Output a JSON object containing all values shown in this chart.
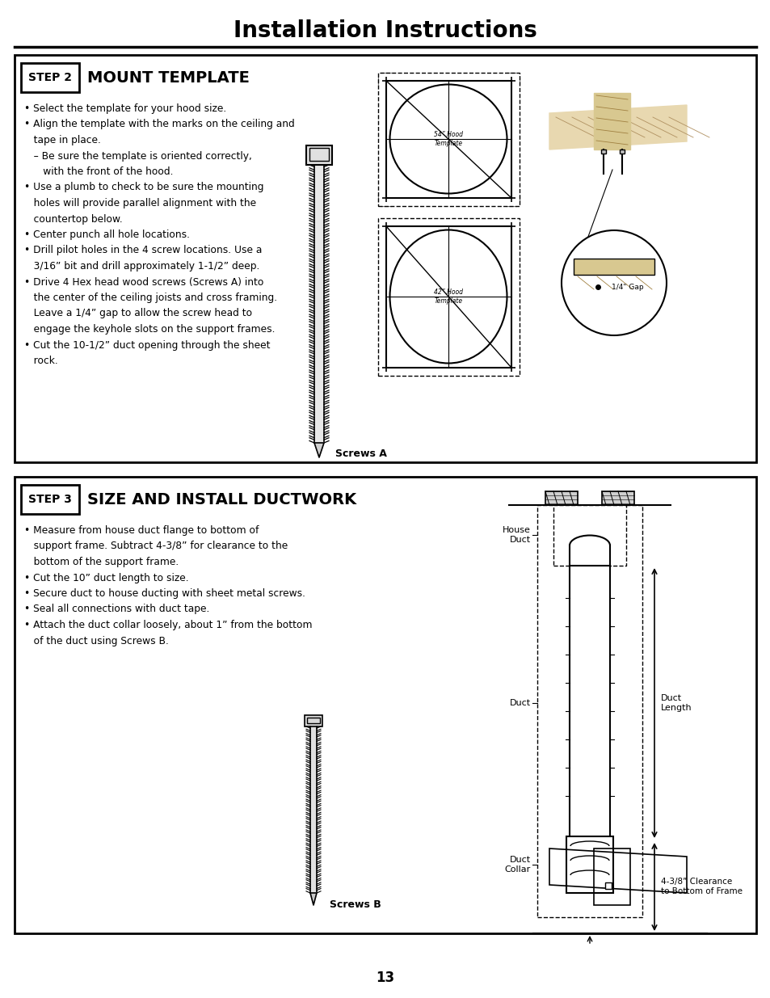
{
  "title": "Installation Instructions",
  "page_number": "13",
  "background_color": "#ffffff",
  "step2_box_label": "STEP 2",
  "step2_heading": "MOUNT TEMPLATE",
  "step2_bullets": [
    "• Select the template for your hood size.",
    "• Align the template with the marks on the ceiling and",
    "   tape in place.",
    "   – Be sure the template is oriented correctly,",
    "      with the front of the hood.",
    "• Use a plumb to check to be sure the mounting",
    "   holes will provide parallel alignment with the",
    "   countertop below.",
    "• Center punch all hole locations.",
    "• Drill pilot holes in the 4 screw locations. Use a",
    "   3/16” bit and drill approximately 1-1/2” deep.",
    "• Drive 4 Hex head wood screws (Screws A) into",
    "   the center of the ceiling joists and cross framing.",
    "   Leave a 1/4” gap to allow the screw head to",
    "   engage the keyhole slots on the support frames.",
    "• Cut the 10-1/2” duct opening through the sheet",
    "   rock."
  ],
  "screws_a_label": "Screws A",
  "step3_box_label": "STEP 3",
  "step3_heading": "SIZE AND INSTALL DUCTWORK",
  "step3_bullets": [
    "• Measure from house duct flange to bottom of",
    "   support frame. Subtract 4-3/8” for clearance to the",
    "   bottom of the support frame.",
    "• Cut the 10” duct length to size.",
    "• Secure duct to house ducting with sheet metal screws.",
    "• Seal all connections with duct tape.",
    "• Attach the duct collar loosely, about 1” from the bottom",
    "   of the duct using Screws B."
  ],
  "screws_b_label": "Screws B",
  "diagram_labels": {
    "house_duct": "House\nDuct",
    "duct": "Duct",
    "duct_collar": "Duct\nCollar",
    "duct_length": "Duct\nLength",
    "clearance": "4-3/8” Clearance\nto Bottom of Frame"
  },
  "template1_label": "54” Hood\nTemplate",
  "template2_label": "42” Hood\nTemplate",
  "gap_label": "1/4\" Gap"
}
